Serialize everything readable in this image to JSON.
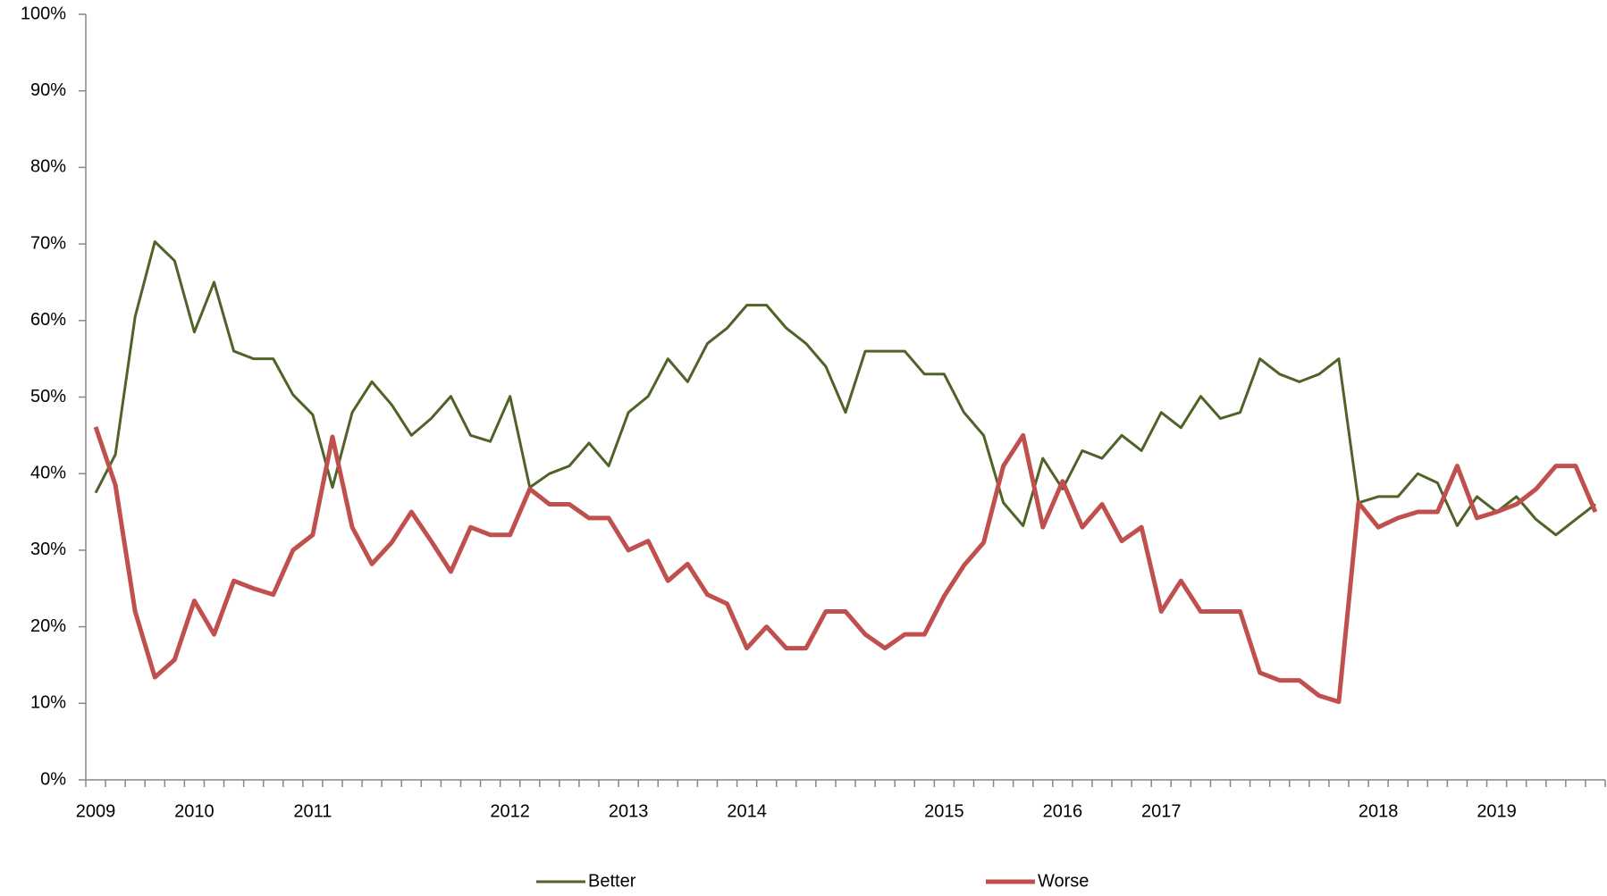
{
  "chart_data": {
    "type": "line",
    "categories": [
      "2009",
      null,
      null,
      null,
      null,
      "2010",
      null,
      null,
      null,
      null,
      null,
      "2011",
      null,
      null,
      null,
      null,
      null,
      null,
      null,
      null,
      null,
      "2012",
      null,
      null,
      null,
      null,
      null,
      "2013",
      null,
      null,
      null,
      null,
      null,
      "2014",
      null,
      null,
      null,
      null,
      null,
      null,
      null,
      null,
      null,
      "2015",
      null,
      null,
      null,
      null,
      null,
      "2016",
      null,
      null,
      null,
      null,
      "2017",
      null,
      null,
      null,
      null,
      null,
      null,
      null,
      null,
      null,
      null,
      "2018",
      null,
      null,
      null,
      null,
      null,
      "2019",
      null,
      null,
      null,
      null,
      null
    ],
    "series": [
      {
        "name": "Better",
        "color": "#4f6228",
        "width": 3,
        "values": [
          37.5,
          42.5,
          60.5,
          70.3,
          67.8,
          58.5,
          65,
          56,
          55,
          55,
          50.3,
          47.7,
          38.2,
          48,
          52,
          49,
          45,
          47.2,
          50.1,
          45,
          44.2,
          50.1,
          38.2,
          40,
          41,
          44,
          41,
          48,
          50.1,
          55,
          52,
          57,
          59,
          62,
          62,
          59,
          57,
          54,
          48,
          56,
          56,
          56,
          53,
          53,
          48,
          45,
          36.2,
          33.2,
          42,
          38,
          43,
          42,
          45,
          43,
          48,
          46,
          50.1,
          47.2,
          48,
          55,
          53,
          52,
          53,
          55,
          36.2,
          37,
          37,
          40,
          38.8,
          33.2,
          37,
          35,
          37,
          34,
          32,
          34,
          36
        ]
      },
      {
        "name": "Worse",
        "color": "#c0504d",
        "width": 5,
        "values": [
          46.1,
          38.5,
          22,
          13.4,
          15.7,
          23.4,
          19,
          26,
          25,
          24.2,
          30,
          32,
          44.8,
          33,
          28.2,
          31,
          35,
          31.2,
          27.2,
          33,
          32,
          32,
          38,
          36,
          36,
          34.2,
          34.2,
          30,
          31.2,
          26,
          28.2,
          24.2,
          23,
          17.2,
          20,
          17.2,
          17.2,
          22,
          22,
          19,
          17.2,
          19,
          19,
          24,
          28,
          31,
          41,
          45,
          33,
          39,
          33,
          36,
          31.2,
          33,
          22,
          26,
          22,
          22,
          22,
          14,
          13,
          13,
          11,
          10.2,
          36.2,
          33,
          34.2,
          35,
          35,
          41,
          34.2,
          35,
          36,
          38,
          41,
          41,
          35
        ]
      }
    ],
    "ylim": [
      0,
      100
    ],
    "yticks": [
      {
        "value": 0,
        "label": "0%"
      },
      {
        "value": 10,
        "label": "10%"
      },
      {
        "value": 20,
        "label": "20%"
      },
      {
        "value": 30,
        "label": "30%"
      },
      {
        "value": 40,
        "label": "40%"
      },
      {
        "value": 50,
        "label": "50%"
      },
      {
        "value": 60,
        "label": "60%"
      },
      {
        "value": 70,
        "label": "70%"
      },
      {
        "value": 80,
        "label": "80%"
      },
      {
        "value": 90,
        "label": "90%"
      },
      {
        "value": 100,
        "label": "100%"
      }
    ],
    "grid": false,
    "legend": "bottom"
  }
}
